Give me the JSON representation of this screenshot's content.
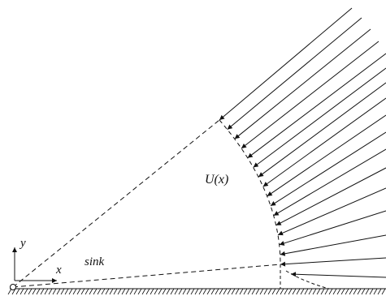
{
  "labels": {
    "velocity": "U(x)",
    "sink": "sink",
    "x_axis": "x",
    "y_axis": "y"
  },
  "diagram": {
    "arrow_count": 16,
    "colors": {
      "ink": "#111111",
      "background": "#ffffff"
    }
  }
}
